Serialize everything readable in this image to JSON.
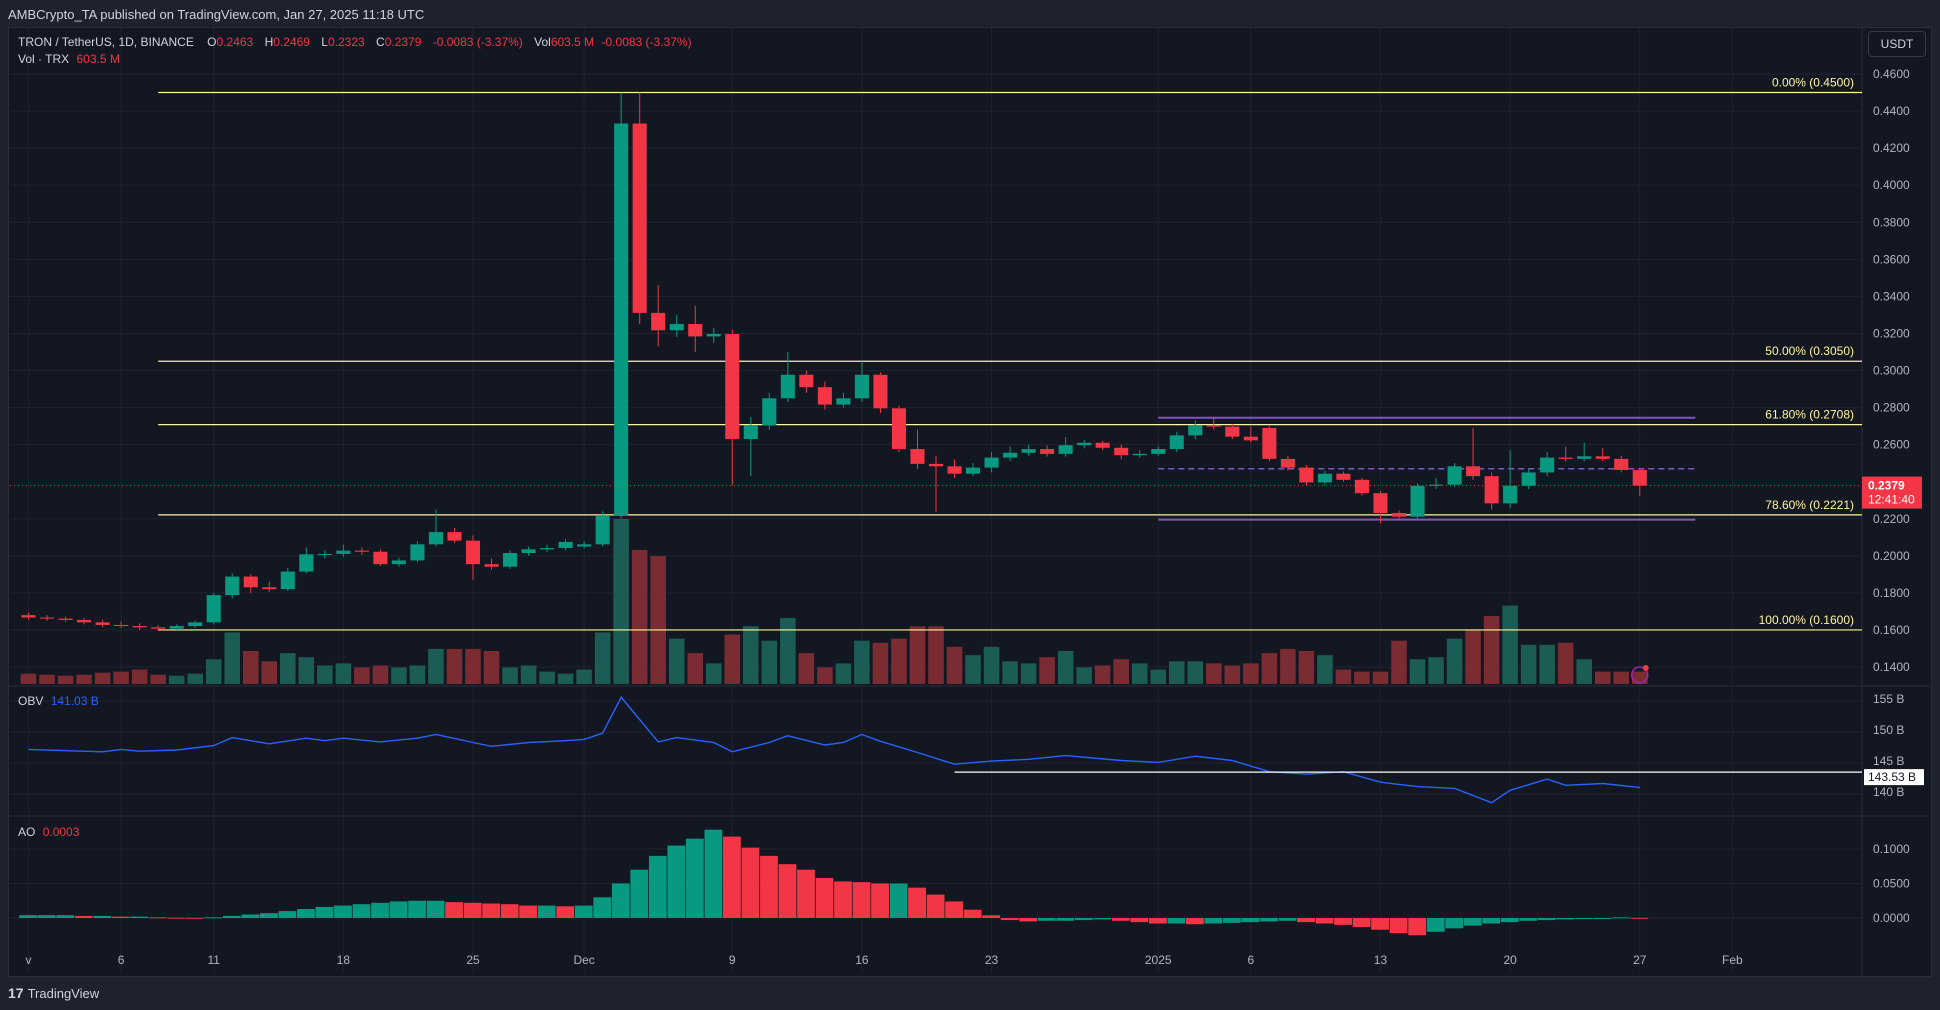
{
  "publish_line": "AMBCrypto_TA published on TradingView.com, Jan 27, 2025 11:18 UTC",
  "symbol": {
    "name": "TRON / TetherUS, 1D, BINANCE",
    "o_label": "O",
    "o": "0.2463",
    "h_label": "H",
    "h": "0.2469",
    "l_label": "L",
    "l": "0.2323",
    "c_label": "C",
    "c": "0.2379",
    "change": "-0.0083 (-3.37%)",
    "vol_label": "Vol",
    "vol": "603.5 M",
    "vol_change": "-0.0083 (-3.37%)"
  },
  "volume_legend": {
    "label": "Vol · TRX",
    "value": "603.5 M"
  },
  "obv_legend": {
    "label": "OBV",
    "value": "141.03 B"
  },
  "ao_legend": {
    "label": "AO",
    "value": "0.0003"
  },
  "currency_button": "USDT",
  "last_price": {
    "price": "0.2379",
    "countdown": "12:41:40"
  },
  "obv_level_label": "143.53 B",
  "footer_brand": "TradingView",
  "colors": {
    "up": "#089981",
    "down": "#f23645",
    "fib": "#fff59d",
    "range": "#7e57c2",
    "obv": "#2962ff",
    "background": "#131722"
  },
  "chart_data": {
    "type": "candlestick",
    "x_range": [
      "2024-10-31",
      "2025-02-08"
    ],
    "price_axis": {
      "ticks": [
        "0.4600",
        "0.4400",
        "0.4200",
        "0.4000",
        "0.3800",
        "0.3600",
        "0.3400",
        "0.3200",
        "0.3000",
        "0.2800",
        "0.2600",
        "0.2200",
        "0.2000",
        "0.1800",
        "0.1600",
        "0.1400"
      ],
      "range": [
        0.13,
        0.47
      ]
    },
    "obv_axis": {
      "ticks": [
        "155 B",
        "150 B",
        "145 B",
        "140 B"
      ],
      "range": [
        136,
        158
      ]
    },
    "ao_axis": {
      "ticks": [
        "0.1000",
        "0.0500",
        "0.0000"
      ]
    },
    "time_axis": [
      {
        "date": "2024-11-01",
        "label": "v"
      },
      {
        "date": "2024-11-06",
        "label": "6"
      },
      {
        "date": "2024-11-11",
        "label": "11"
      },
      {
        "date": "2024-11-18",
        "label": "18"
      },
      {
        "date": "2024-11-25",
        "label": "25"
      },
      {
        "date": "2024-12-01",
        "label": "Dec"
      },
      {
        "date": "2024-12-09",
        "label": "9"
      },
      {
        "date": "2024-12-16",
        "label": "16"
      },
      {
        "date": "2024-12-23",
        "label": "23"
      },
      {
        "date": "2025-01-01",
        "label": "2025"
      },
      {
        "date": "2025-01-06",
        "label": "6"
      },
      {
        "date": "2025-01-13",
        "label": "13"
      },
      {
        "date": "2025-01-20",
        "label": "20"
      },
      {
        "date": "2025-01-27",
        "label": "27"
      },
      {
        "date": "2025-02-01",
        "label": "Feb"
      }
    ],
    "fib_levels": [
      {
        "label": "0.00% (0.4500)",
        "price": 0.45
      },
      {
        "label": "50.00% (0.3050)",
        "price": 0.305
      },
      {
        "label": "61.80% (0.2708)",
        "price": 0.2708
      },
      {
        "label": "78.60% (0.2221)",
        "price": 0.2221
      },
      {
        "label": "100.00% (0.1600)",
        "price": 0.16
      }
    ],
    "fib_start": "2024-11-08",
    "range_box": {
      "start": "2025-01-01",
      "end": "2025-01-30",
      "top": 0.2745,
      "mid": 0.247,
      "bottom": 0.2195
    },
    "obv_level": {
      "start": "2024-12-21",
      "value": 143.53
    },
    "candles_columns": [
      "date",
      "open",
      "high",
      "low",
      "close",
      "volume_M"
    ],
    "candles": [
      [
        "2024-11-01",
        0.168,
        0.1695,
        0.1655,
        0.1667,
        500
      ],
      [
        "2024-11-02",
        0.1667,
        0.168,
        0.165,
        0.1661,
        450
      ],
      [
        "2024-11-03",
        0.1661,
        0.1672,
        0.1645,
        0.1654,
        400
      ],
      [
        "2024-11-04",
        0.1654,
        0.1665,
        0.163,
        0.1641,
        450
      ],
      [
        "2024-11-05",
        0.1641,
        0.1655,
        0.1615,
        0.1627,
        550
      ],
      [
        "2024-11-06",
        0.1627,
        0.1645,
        0.161,
        0.1621,
        600
      ],
      [
        "2024-11-07",
        0.1621,
        0.1635,
        0.16,
        0.1614,
        700
      ],
      [
        "2024-11-08",
        0.1614,
        0.1625,
        0.1595,
        0.1607,
        450
      ],
      [
        "2024-11-09",
        0.1607,
        0.163,
        0.16,
        0.1621,
        400
      ],
      [
        "2024-11-10",
        0.1621,
        0.165,
        0.1612,
        0.1641,
        500
      ],
      [
        "2024-11-11",
        0.1641,
        0.18,
        0.163,
        0.1788,
        1200
      ],
      [
        "2024-11-12",
        0.1788,
        0.1905,
        0.177,
        0.1888,
        2500
      ],
      [
        "2024-11-13",
        0.1888,
        0.19,
        0.18,
        0.183,
        1600
      ],
      [
        "2024-11-14",
        0.183,
        0.186,
        0.1805,
        0.182,
        1100
      ],
      [
        "2024-11-15",
        0.182,
        0.1935,
        0.181,
        0.1915,
        1500
      ],
      [
        "2024-11-16",
        0.1915,
        0.2045,
        0.1905,
        0.2008,
        1300
      ],
      [
        "2024-11-17",
        0.2008,
        0.203,
        0.1985,
        0.201,
        900
      ],
      [
        "2024-11-18",
        0.201,
        0.206,
        0.1995,
        0.2028,
        1000
      ],
      [
        "2024-11-19",
        0.2028,
        0.2045,
        0.2005,
        0.2022,
        800
      ],
      [
        "2024-11-20",
        0.2022,
        0.2035,
        0.1945,
        0.1955,
        900
      ],
      [
        "2024-11-21",
        0.1955,
        0.199,
        0.194,
        0.1975,
        800
      ],
      [
        "2024-11-22",
        0.1975,
        0.208,
        0.1965,
        0.2062,
        900
      ],
      [
        "2024-11-23",
        0.2062,
        0.2249,
        0.205,
        0.2128,
        1700
      ],
      [
        "2024-11-24",
        0.2128,
        0.215,
        0.207,
        0.2082,
        1700
      ],
      [
        "2024-11-25",
        0.2082,
        0.211,
        0.187,
        0.1955,
        1700
      ],
      [
        "2024-11-26",
        0.1955,
        0.1985,
        0.1925,
        0.1941,
        1600
      ],
      [
        "2024-11-27",
        0.1941,
        0.203,
        0.193,
        0.2015,
        800
      ],
      [
        "2024-11-28",
        0.2015,
        0.205,
        0.2,
        0.2035,
        900
      ],
      [
        "2024-11-29",
        0.2035,
        0.206,
        0.202,
        0.2042,
        600
      ],
      [
        "2024-11-30",
        0.2042,
        0.209,
        0.203,
        0.2075,
        500
      ],
      [
        "2024-12-01",
        0.205,
        0.208,
        0.204,
        0.2062,
        700
      ],
      [
        "2024-12-02",
        0.2062,
        0.224,
        0.205,
        0.2215,
        2500
      ],
      [
        "2024-12-03",
        0.2215,
        0.45,
        0.22,
        0.4333,
        8000
      ],
      [
        "2024-12-04",
        0.4333,
        0.45,
        0.325,
        0.3311,
        6500
      ],
      [
        "2024-12-05",
        0.3311,
        0.346,
        0.313,
        0.3217,
        6200
      ],
      [
        "2024-12-06",
        0.3217,
        0.33,
        0.318,
        0.3251,
        2200
      ],
      [
        "2024-12-07",
        0.3251,
        0.335,
        0.31,
        0.3184,
        1500
      ],
      [
        "2024-12-08",
        0.3184,
        0.323,
        0.315,
        0.3197,
        1000
      ],
      [
        "2024-12-09",
        0.3197,
        0.322,
        0.238,
        0.263,
        2400
      ],
      [
        "2024-12-10",
        0.263,
        0.275,
        0.243,
        0.2703,
        2800
      ],
      [
        "2024-12-11",
        0.2703,
        0.288,
        0.268,
        0.285,
        2100
      ],
      [
        "2024-12-12",
        0.285,
        0.31,
        0.283,
        0.2977,
        3200
      ],
      [
        "2024-12-13",
        0.2977,
        0.3,
        0.288,
        0.291,
        1500
      ],
      [
        "2024-12-14",
        0.291,
        0.294,
        0.279,
        0.2816,
        800
      ],
      [
        "2024-12-15",
        0.2816,
        0.288,
        0.28,
        0.285,
        1000
      ],
      [
        "2024-12-16",
        0.285,
        0.305,
        0.283,
        0.2977,
        2100
      ],
      [
        "2024-12-17",
        0.2977,
        0.299,
        0.277,
        0.2796,
        2000
      ],
      [
        "2024-12-18",
        0.2796,
        0.281,
        0.256,
        0.2576,
        2200
      ],
      [
        "2024-12-19",
        0.2576,
        0.268,
        0.247,
        0.2496,
        2800
      ],
      [
        "2024-12-20",
        0.2496,
        0.254,
        0.2236,
        0.2483,
        2800
      ],
      [
        "2024-12-21",
        0.2483,
        0.252,
        0.242,
        0.2443,
        1800
      ],
      [
        "2024-12-22",
        0.2443,
        0.25,
        0.243,
        0.2476,
        1400
      ],
      [
        "2024-12-23",
        0.2476,
        0.256,
        0.245,
        0.253,
        1800
      ],
      [
        "2024-12-24",
        0.253,
        0.259,
        0.251,
        0.2556,
        1100
      ],
      [
        "2024-12-25",
        0.2556,
        0.26,
        0.254,
        0.2576,
        1000
      ],
      [
        "2024-12-26",
        0.2576,
        0.2595,
        0.2535,
        0.255,
        1300
      ],
      [
        "2024-12-27",
        0.255,
        0.264,
        0.2535,
        0.2597,
        1600
      ],
      [
        "2024-12-28",
        0.2597,
        0.2625,
        0.258,
        0.261,
        800
      ],
      [
        "2024-12-29",
        0.261,
        0.262,
        0.257,
        0.2583,
        900
      ],
      [
        "2024-12-30",
        0.2583,
        0.26,
        0.252,
        0.2543,
        1200
      ],
      [
        "2024-12-31",
        0.2543,
        0.257,
        0.253,
        0.255,
        1000
      ],
      [
        "2025-01-01",
        0.255,
        0.259,
        0.254,
        0.2576,
        700
      ],
      [
        "2025-01-02",
        0.2576,
        0.267,
        0.256,
        0.265,
        1100
      ],
      [
        "2025-01-03",
        0.265,
        0.273,
        0.263,
        0.2703,
        1100
      ],
      [
        "2025-01-04",
        0.2703,
        0.2745,
        0.268,
        0.2697,
        1000
      ],
      [
        "2025-01-05",
        0.2697,
        0.271,
        0.263,
        0.2643,
        900
      ],
      [
        "2025-01-06",
        0.2643,
        0.27,
        0.261,
        0.2623,
        1000
      ],
      [
        "2025-01-07",
        0.269,
        0.27,
        0.251,
        0.2523,
        1500
      ],
      [
        "2025-01-08",
        0.2523,
        0.254,
        0.246,
        0.2476,
        1700
      ],
      [
        "2025-01-09",
        0.2476,
        0.249,
        0.238,
        0.2396,
        1600
      ],
      [
        "2025-01-10",
        0.2396,
        0.246,
        0.238,
        0.2443,
        1400
      ],
      [
        "2025-01-11",
        0.2443,
        0.2455,
        0.24,
        0.241,
        700
      ],
      [
        "2025-01-12",
        0.241,
        0.242,
        0.2325,
        0.2338,
        600
      ],
      [
        "2025-01-13",
        0.2338,
        0.235,
        0.2175,
        0.2231,
        600
      ],
      [
        "2025-01-14",
        0.2231,
        0.2245,
        0.2195,
        0.2211,
        2100
      ],
      [
        "2025-01-15",
        0.2211,
        0.239,
        0.22,
        0.2378,
        1200
      ],
      [
        "2025-01-16",
        0.2378,
        0.242,
        0.236,
        0.2384,
        1300
      ],
      [
        "2025-01-17",
        0.2384,
        0.25,
        0.237,
        0.2483,
        2200
      ],
      [
        "2025-01-18",
        0.2483,
        0.269,
        0.241,
        0.243,
        2600
      ],
      [
        "2025-01-19",
        0.243,
        0.245,
        0.225,
        0.2283,
        3300
      ],
      [
        "2025-01-20",
        0.2283,
        0.257,
        0.226,
        0.2378,
        3800
      ],
      [
        "2025-01-21",
        0.2378,
        0.247,
        0.236,
        0.245,
        1900
      ],
      [
        "2025-01-22",
        0.245,
        0.256,
        0.243,
        0.253,
        1900
      ],
      [
        "2025-01-23",
        0.253,
        0.259,
        0.251,
        0.2523,
        2000
      ],
      [
        "2025-01-24",
        0.2523,
        0.261,
        0.251,
        0.2537,
        1200
      ],
      [
        "2025-01-25",
        0.2537,
        0.258,
        0.251,
        0.2523,
        600
      ],
      [
        "2025-01-26",
        0.2523,
        0.254,
        0.245,
        0.2463,
        600
      ],
      [
        "2025-01-27",
        0.2463,
        0.2469,
        0.2323,
        0.2379,
        603.5
      ]
    ],
    "obv_points": [
      [
        "2024-11-01",
        147.2
      ],
      [
        "2024-11-05",
        146.8
      ],
      [
        "2024-11-06",
        147.2
      ],
      [
        "2024-11-07",
        146.9
      ],
      [
        "2024-11-09",
        147.1
      ],
      [
        "2024-11-11",
        147.8
      ],
      [
        "2024-11-12",
        149.1
      ],
      [
        "2024-11-14",
        148.1
      ],
      [
        "2024-11-16",
        149.0
      ],
      [
        "2024-11-17",
        148.6
      ],
      [
        "2024-11-18",
        149.0
      ],
      [
        "2024-11-20",
        148.4
      ],
      [
        "2024-11-22",
        149.0
      ],
      [
        "2024-11-23",
        149.6
      ],
      [
        "2024-11-25",
        148.3
      ],
      [
        "2024-11-26",
        147.7
      ],
      [
        "2024-11-28",
        148.3
      ],
      [
        "2024-11-30",
        148.6
      ],
      [
        "2024-12-01",
        148.8
      ],
      [
        "2024-12-02",
        149.8
      ],
      [
        "2024-12-03",
        155.6
      ],
      [
        "2024-12-05",
        148.4
      ],
      [
        "2024-12-06",
        149.1
      ],
      [
        "2024-12-08",
        148.3
      ],
      [
        "2024-12-09",
        146.8
      ],
      [
        "2024-12-11",
        148.3
      ],
      [
        "2024-12-12",
        149.4
      ],
      [
        "2024-12-14",
        147.9
      ],
      [
        "2024-12-15",
        148.3
      ],
      [
        "2024-12-16",
        149.6
      ],
      [
        "2024-12-17",
        148.5
      ],
      [
        "2024-12-19",
        146.7
      ],
      [
        "2024-12-21",
        144.8
      ],
      [
        "2024-12-23",
        145.3
      ],
      [
        "2024-12-25",
        145.6
      ],
      [
        "2024-12-27",
        146.2
      ],
      [
        "2024-12-30",
        145.4
      ],
      [
        "2025-01-01",
        145.1
      ],
      [
        "2025-01-03",
        146.1
      ],
      [
        "2025-01-05",
        145.4
      ],
      [
        "2025-01-07",
        143.6
      ],
      [
        "2025-01-09",
        143.2
      ],
      [
        "2025-01-11",
        143.6
      ],
      [
        "2025-01-13",
        141.9
      ],
      [
        "2025-01-15",
        141.2
      ],
      [
        "2025-01-17",
        140.9
      ],
      [
        "2025-01-19",
        138.6
      ],
      [
        "2025-01-20",
        140.6
      ],
      [
        "2025-01-22",
        142.4
      ],
      [
        "2025-01-23",
        141.4
      ],
      [
        "2025-01-25",
        141.7
      ],
      [
        "2025-01-27",
        141.03
      ]
    ],
    "ao_values": [
      0.004,
      0.004,
      0.004,
      0.003,
      0.003,
      0.002,
      0.002,
      0.001,
      0.0005,
      0.0003,
      0.001,
      0.003,
      0.005,
      0.007,
      0.01,
      0.013,
      0.016,
      0.018,
      0.02,
      0.022,
      0.024,
      0.025,
      0.025,
      0.023,
      0.022,
      0.021,
      0.02,
      0.018,
      0.018,
      0.017,
      0.018,
      0.03,
      0.05,
      0.07,
      0.09,
      0.105,
      0.115,
      0.128,
      0.118,
      0.102,
      0.09,
      0.078,
      0.07,
      0.058,
      0.053,
      0.052,
      0.05,
      0.05,
      0.044,
      0.034,
      0.024,
      0.012,
      0.004,
      -0.003,
      -0.005,
      -0.004,
      -0.004,
      -0.003,
      -0.002,
      -0.004,
      -0.006,
      -0.008,
      -0.008,
      -0.009,
      -0.008,
      -0.007,
      -0.006,
      -0.005,
      -0.004,
      -0.006,
      -0.008,
      -0.01,
      -0.013,
      -0.017,
      -0.022,
      -0.025,
      -0.02,
      -0.015,
      -0.011,
      -0.008,
      -0.006,
      -0.004,
      -0.003,
      -0.002,
      -0.001,
      0.0,
      0.001,
      0.0003
    ]
  }
}
